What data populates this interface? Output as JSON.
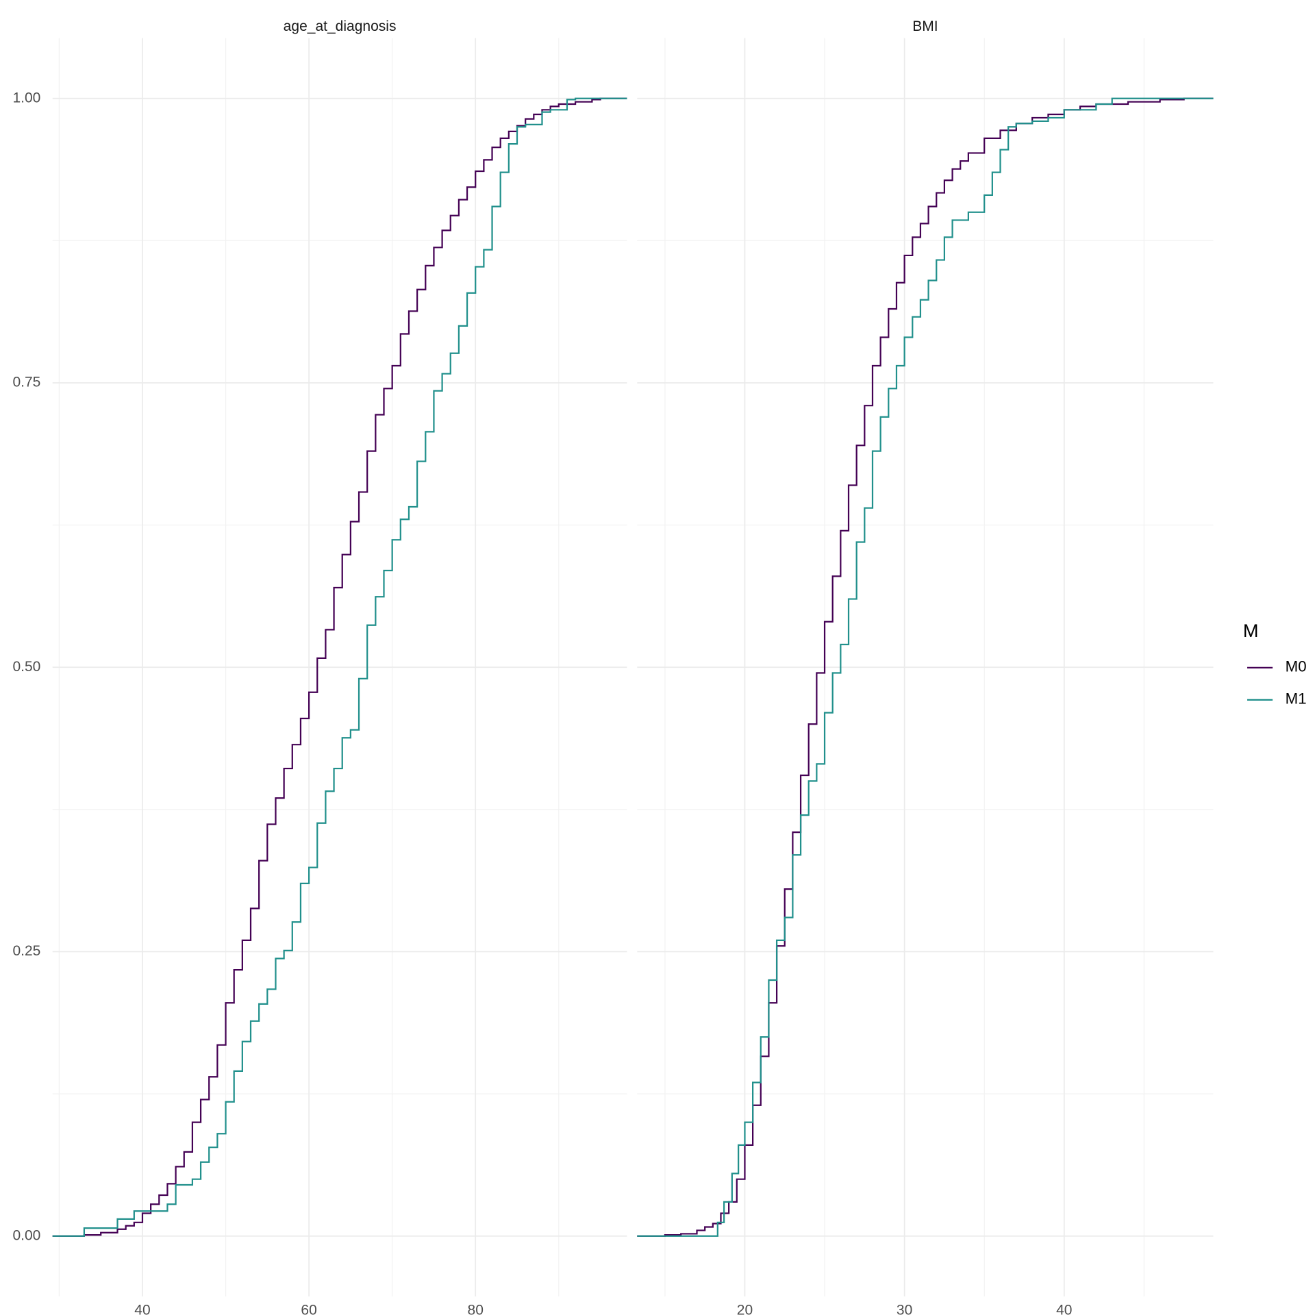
{
  "chart_data": [
    {
      "type": "line",
      "step": true,
      "title": "age_at_diagnosis",
      "xlim": [
        29.2,
        98.2
      ],
      "ylim": [
        -0.053,
        1.053
      ],
      "xticks": [
        40,
        60,
        80
      ],
      "xminor": [
        30,
        50,
        70,
        90
      ],
      "yticks": [
        {
          "value": 0,
          "label": "0.00"
        },
        {
          "value": 0.25,
          "label": "0.25"
        },
        {
          "value": 0.5,
          "label": "0.50"
        },
        {
          "value": 0.75,
          "label": "0.75"
        },
        {
          "value": 1,
          "label": "1.00"
        }
      ],
      "yminor": [
        0.125,
        0.375,
        0.625,
        0.875
      ],
      "grid": true,
      "legend_title": "M",
      "series": [
        {
          "name": "M0",
          "color": "#440154",
          "x": [
            33,
            35,
            37,
            38,
            39,
            40,
            41,
            42,
            43,
            44,
            45,
            46,
            47,
            48,
            49,
            50,
            51,
            52,
            53,
            54,
            55,
            56,
            57,
            58,
            59,
            60,
            61,
            62,
            63,
            64,
            65,
            66,
            67,
            68,
            69,
            70,
            71,
            72,
            73,
            74,
            75,
            76,
            77,
            78,
            79,
            80,
            81,
            82,
            83,
            84,
            85,
            86,
            87,
            88,
            89,
            90,
            92,
            94,
            95
          ],
          "values": [
            0.001,
            0.003,
            0.006,
            0.009,
            0.012,
            0.02,
            0.028,
            0.036,
            0.046,
            0.061,
            0.074,
            0.1,
            0.12,
            0.14,
            0.168,
            0.205,
            0.234,
            0.26,
            0.288,
            0.33,
            0.362,
            0.385,
            0.411,
            0.432,
            0.455,
            0.478,
            0.508,
            0.533,
            0.57,
            0.599,
            0.628,
            0.654,
            0.69,
            0.722,
            0.745,
            0.765,
            0.793,
            0.813,
            0.832,
            0.853,
            0.869,
            0.884,
            0.897,
            0.911,
            0.922,
            0.936,
            0.946,
            0.957,
            0.965,
            0.971,
            0.976,
            0.982,
            0.986,
            0.99,
            0.993,
            0.995,
            0.997,
            0.999,
            1.0
          ]
        },
        {
          "name": "M1",
          "color": "#21908C",
          "x": [
            33,
            37,
            39,
            43,
            44,
            46,
            47,
            48,
            49,
            50,
            51,
            52,
            53,
            54,
            55,
            56,
            57,
            58,
            59,
            60,
            61,
            62,
            63,
            64,
            65,
            66,
            67,
            68,
            69,
            70,
            71,
            72,
            73,
            74,
            75,
            76,
            77,
            78,
            79,
            80,
            81,
            82,
            83,
            84,
            85,
            86,
            88,
            89,
            91,
            92
          ],
          "values": [
            0.007,
            0.015,
            0.022,
            0.028,
            0.045,
            0.05,
            0.065,
            0.078,
            0.09,
            0.118,
            0.145,
            0.171,
            0.189,
            0.204,
            0.217,
            0.244,
            0.251,
            0.276,
            0.31,
            0.324,
            0.363,
            0.391,
            0.411,
            0.438,
            0.445,
            0.49,
            0.537,
            0.562,
            0.585,
            0.612,
            0.63,
            0.641,
            0.681,
            0.707,
            0.743,
            0.758,
            0.776,
            0.8,
            0.829,
            0.852,
            0.867,
            0.905,
            0.935,
            0.96,
            0.975,
            0.977,
            0.988,
            0.99,
            0.999,
            1.0
          ]
        }
      ]
    },
    {
      "type": "line",
      "step": true,
      "title": "BMI",
      "xlim": [
        13.26,
        49.34
      ],
      "ylim": [
        -0.053,
        1.053
      ],
      "xticks": [
        20,
        30,
        40
      ],
      "xminor": [
        15,
        25,
        35,
        45
      ],
      "yminor": [
        0.125,
        0.375,
        0.625,
        0.875
      ],
      "grid": true,
      "series": [
        {
          "name": "M0",
          "color": "#440154",
          "x": [
            15,
            16,
            17,
            17.5,
            18,
            18.5,
            19,
            19.5,
            20,
            20.5,
            21,
            21.5,
            22,
            22.5,
            23,
            23.5,
            24,
            24.5,
            25,
            25.5,
            26,
            26.5,
            27,
            27.5,
            28,
            28.5,
            29,
            29.5,
            30,
            30.5,
            31,
            31.5,
            32,
            32.5,
            33,
            33.5,
            34,
            35,
            36,
            37,
            38,
            39,
            40,
            41,
            42,
            44,
            46,
            47.5
          ],
          "values": [
            0.001,
            0.002,
            0.005,
            0.008,
            0.011,
            0.02,
            0.03,
            0.05,
            0.08,
            0.115,
            0.158,
            0.205,
            0.255,
            0.305,
            0.355,
            0.405,
            0.45,
            0.495,
            0.54,
            0.58,
            0.62,
            0.66,
            0.695,
            0.73,
            0.765,
            0.79,
            0.815,
            0.838,
            0.862,
            0.878,
            0.89,
            0.905,
            0.917,
            0.928,
            0.938,
            0.945,
            0.952,
            0.965,
            0.972,
            0.978,
            0.983,
            0.986,
            0.99,
            0.993,
            0.995,
            0.997,
            0.999,
            1.0
          ]
        },
        {
          "name": "M1",
          "color": "#21908C",
          "x": [
            18.3,
            18.7,
            19.2,
            19.6,
            20,
            20.5,
            21,
            21.5,
            22,
            22.5,
            23,
            23.5,
            24,
            24.5,
            25,
            25.5,
            26,
            26.5,
            27,
            27.5,
            28,
            28.5,
            29,
            29.5,
            30,
            30.5,
            31,
            31.5,
            32,
            32.5,
            33,
            34,
            35,
            35.5,
            36,
            36.5,
            37,
            38,
            39,
            40,
            42,
            43
          ],
          "values": [
            0.012,
            0.03,
            0.055,
            0.08,
            0.1,
            0.135,
            0.175,
            0.225,
            0.26,
            0.28,
            0.335,
            0.37,
            0.4,
            0.415,
            0.46,
            0.495,
            0.52,
            0.56,
            0.61,
            0.64,
            0.69,
            0.72,
            0.745,
            0.765,
            0.79,
            0.808,
            0.823,
            0.84,
            0.858,
            0.878,
            0.893,
            0.9,
            0.915,
            0.935,
            0.955,
            0.975,
            0.978,
            0.98,
            0.983,
            0.99,
            0.995,
            1.0
          ]
        }
      ]
    }
  ]
}
